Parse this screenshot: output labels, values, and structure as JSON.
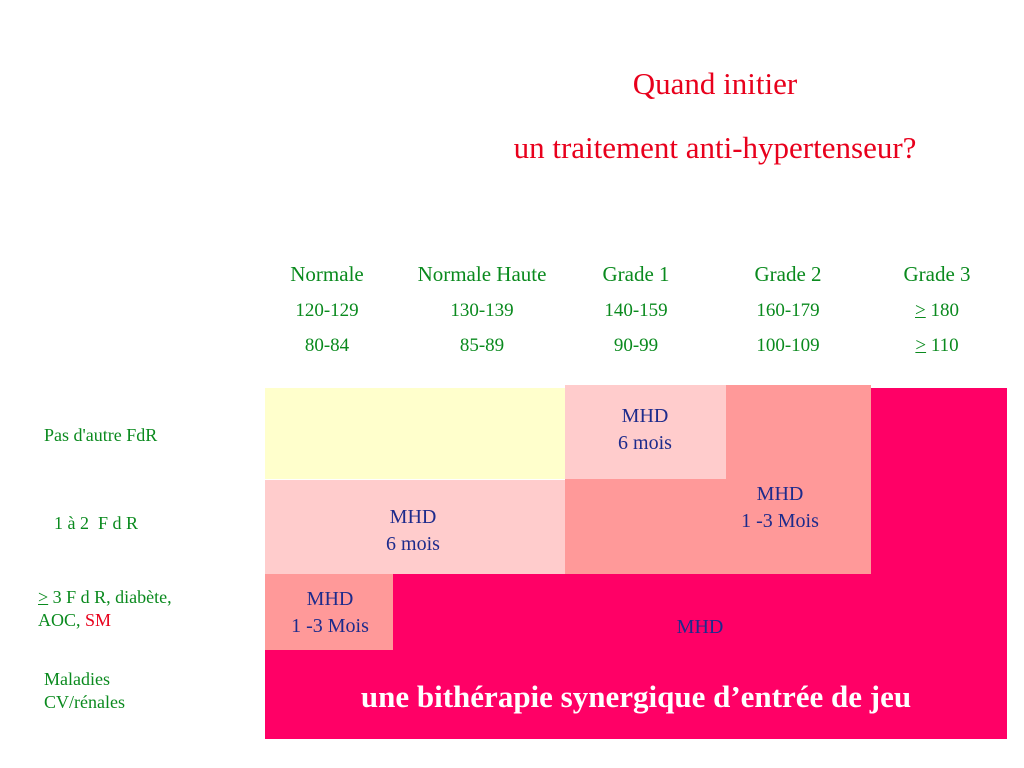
{
  "title": {
    "line1": "Quand initier",
    "line2": "un traitement anti-hypertenseur?"
  },
  "columns": [
    {
      "name": "Normale",
      "systolic": "120-129",
      "diastolic": "80-84"
    },
    {
      "name": "Normale Haute",
      "systolic": "130-139",
      "diastolic": "85-89"
    },
    {
      "name": "Grade 1",
      "systolic": "140-159",
      "diastolic": "90-99"
    },
    {
      "name": "Grade 2",
      "systolic": "160-179",
      "diastolic": "100-109"
    },
    {
      "name": "Grade 3",
      "systolic_symbol": ">",
      "systolic": "180",
      "diastolic_symbol": ">",
      "diastolic": "110"
    }
  ],
  "rows": {
    "r1": "Pas d'autre FdR",
    "r2": "1 à 2  F d R",
    "r3_symbol": ">",
    "r3_text": " 3 F d R, diabète,",
    "r3_line2": "AOC, ",
    "r3_sm": "SM",
    "r4_line1": "Maladies",
    "r4_line2": "CV/rénales"
  },
  "cells": {
    "g1_r1": {
      "line1": "MHD",
      "line2": "6 mois"
    },
    "g2_r2": {
      "line1": "MHD",
      "line2": "1 -3 Mois"
    },
    "nh_r2": {
      "line1": "MHD",
      "line2": "6 mois"
    },
    "n_r3": {
      "line1": "MHD",
      "line2": "1 -3 Mois"
    },
    "r3_main": "MHD",
    "r4_main": "une bithérapie synergique d’entrée de jeu"
  },
  "colors": {
    "title": "#e8001c",
    "labels": "#0a8a1e",
    "cell_text": "#1d2b8c",
    "light_yellow": "#ffffcc",
    "light_pink": "#ffcccc",
    "salmon": "#ff9999",
    "hot_pink": "#ff0066"
  }
}
